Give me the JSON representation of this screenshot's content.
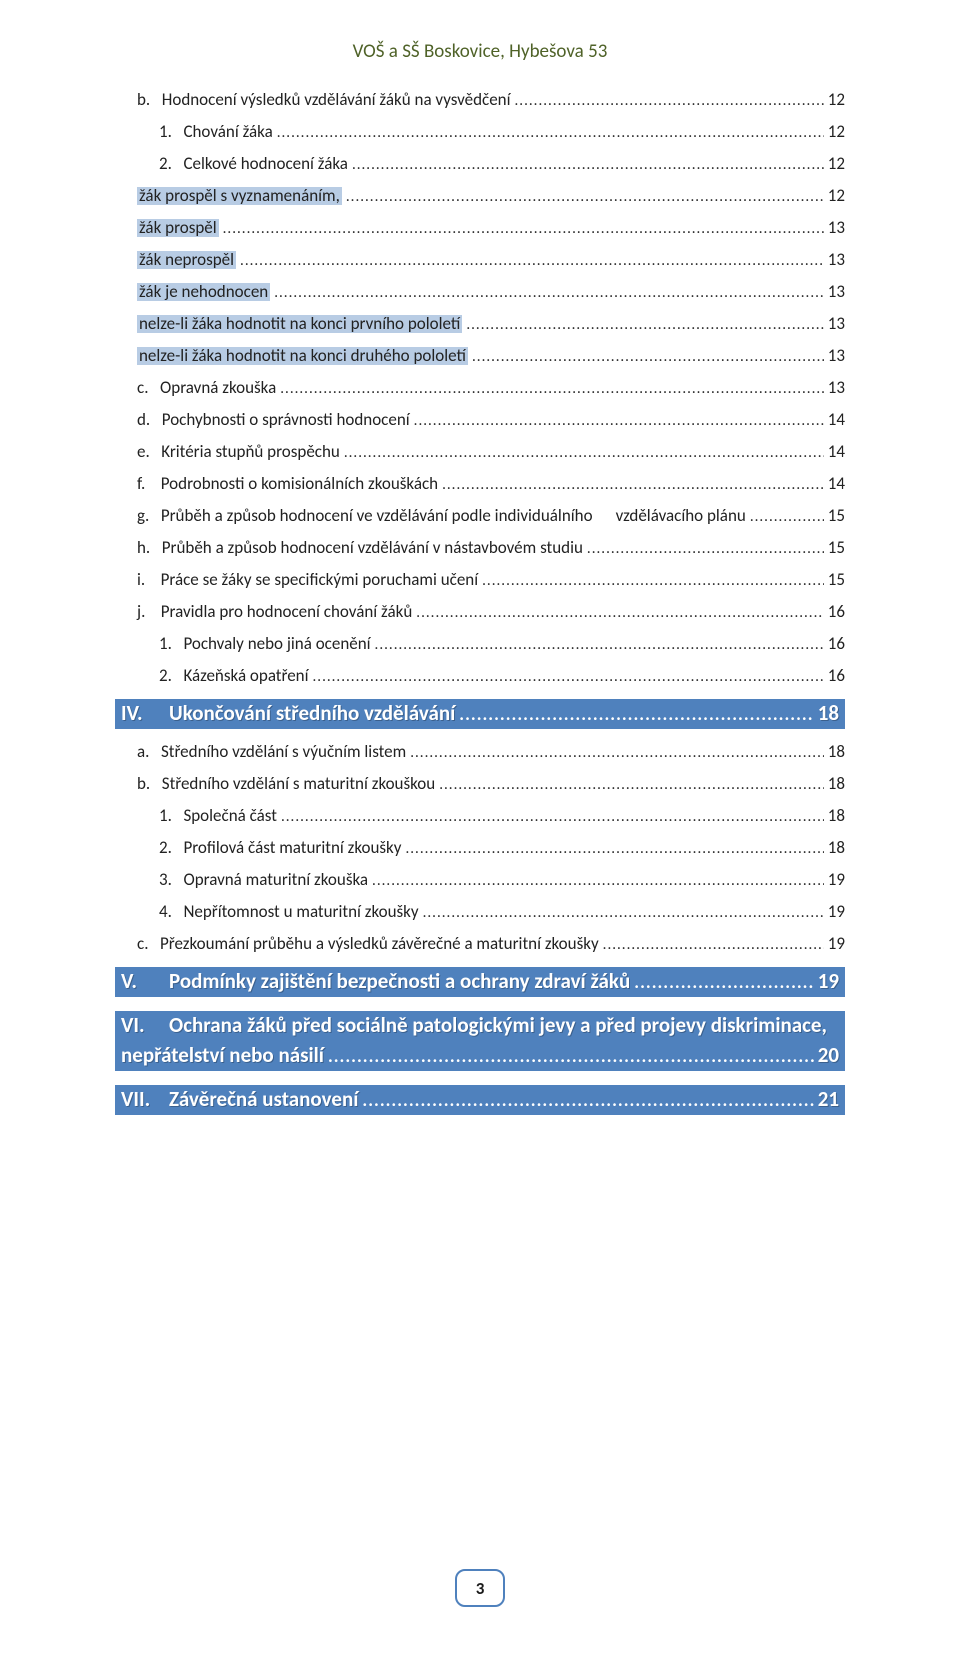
{
  "header": "VOŠ a SŠ Boskovice, Hybešova 53",
  "page_number": "3",
  "toc": [
    {
      "type": "line",
      "indent": 1,
      "prefix": "b.   ",
      "label": "Hodnocení výsledků vzdělávání žáků na vysvědčení",
      "page": "12",
      "hl": false
    },
    {
      "type": "line",
      "indent": 2,
      "prefix": "1.   ",
      "label": "Chování žáka",
      "page": "12",
      "hl": false
    },
    {
      "type": "line",
      "indent": 2,
      "prefix": "2.   ",
      "label": "Celkové hodnocení žáka",
      "page": "12",
      "hl": false
    },
    {
      "type": "line",
      "indent": 1,
      "prefix": "",
      "label": "žák prospěl s vyznamenáním,",
      "page": "12",
      "hl": true
    },
    {
      "type": "line",
      "indent": 1,
      "prefix": "",
      "label": "žák prospěl",
      "page": "13",
      "hl": true
    },
    {
      "type": "line",
      "indent": 1,
      "prefix": "",
      "label": "žák neprospěl",
      "page": "13",
      "hl": true
    },
    {
      "type": "line",
      "indent": 1,
      "prefix": "",
      "label": "žák je nehodnocen",
      "page": "13",
      "hl": true
    },
    {
      "type": "line",
      "indent": 1,
      "prefix": "",
      "label": "nelze-li žáka hodnotit na konci prvního pololetí",
      "page": "13",
      "hl": true
    },
    {
      "type": "line",
      "indent": 1,
      "prefix": "",
      "label": "nelze-li žáka hodnotit na konci druhého pololetí",
      "page": "13",
      "hl": true
    },
    {
      "type": "line",
      "indent": 1,
      "prefix": "c.   ",
      "label": "Opravná zkouška",
      "page": "13",
      "hl": false
    },
    {
      "type": "line",
      "indent": 1,
      "prefix": "d.   ",
      "label": "Pochybnosti o správnosti hodnocení",
      "page": "14",
      "hl": false
    },
    {
      "type": "line",
      "indent": 1,
      "prefix": "e.   ",
      "label": "Kritéria stupňů prospěchu",
      "page": "14",
      "hl": false
    },
    {
      "type": "line",
      "indent": 1,
      "prefix": "f.    ",
      "label": "Podrobnosti o komisionálních zkouškách",
      "page": "14",
      "hl": false
    },
    {
      "type": "line",
      "indent": 1,
      "prefix": "g.   ",
      "label": "Průběh a způsob hodnocení ve vzdělávání podle individuálního      vzdělávacího plánu",
      "page": "15",
      "hl": false
    },
    {
      "type": "line",
      "indent": 1,
      "prefix": "h.   ",
      "label": "Průběh a způsob hodnocení vzdělávání v nástavbovém studiu",
      "page": "15",
      "hl": false
    },
    {
      "type": "line",
      "indent": 1,
      "prefix": "i.    ",
      "label": "Práce se žáky se specifickými poruchami učení",
      "page": "15",
      "hl": false
    },
    {
      "type": "line",
      "indent": 1,
      "prefix": "j.    ",
      "label": "Pravidla pro hodnocení chování žáků",
      "page": "16",
      "hl": false
    },
    {
      "type": "line",
      "indent": 2,
      "prefix": "1.   ",
      "label": "Pochvaly nebo jiná ocenění",
      "page": "16",
      "hl": false
    },
    {
      "type": "line",
      "indent": 2,
      "prefix": "2.   ",
      "label": "Kázeňská opatření",
      "page": "16",
      "hl": false
    },
    {
      "type": "heading",
      "num": "IV.",
      "label": "Ukončování středního vzdělávání",
      "page": "18"
    },
    {
      "type": "line",
      "indent": 1,
      "prefix": "a.   ",
      "label": "Středního vzdělání s výučním listem",
      "page": "18",
      "hl": false
    },
    {
      "type": "line",
      "indent": 1,
      "prefix": "b.   ",
      "label": "Středního vzdělání s maturitní zkouškou",
      "page": "18",
      "hl": false
    },
    {
      "type": "line",
      "indent": 2,
      "prefix": "1.   ",
      "label": "Společná část",
      "page": "18",
      "hl": false
    },
    {
      "type": "line",
      "indent": 2,
      "prefix": "2.   ",
      "label": "Profilová část maturitní zkoušky",
      "page": "18",
      "hl": false
    },
    {
      "type": "line",
      "indent": 2,
      "prefix": "3.   ",
      "label": "Opravná maturitní zkouška",
      "page": "19",
      "hl": false
    },
    {
      "type": "line",
      "indent": 2,
      "prefix": "4.   ",
      "label": "Nepřítomnost u maturitní zkoušky",
      "page": "19",
      "hl": false
    },
    {
      "type": "line",
      "indent": 1,
      "prefix": "c.   ",
      "label": "Přezkoumání průběhu a výsledků závěrečné a maturitní zkoušky",
      "page": "19",
      "hl": false
    },
    {
      "type": "heading",
      "num": "V.",
      "label": "Podmínky zajištění bezpečnosti a ochrany zdraví žáků",
      "page": "19"
    },
    {
      "type": "heading-wrap",
      "num": "VI.",
      "label1": "Ochrana žáků před sociálně patologickými jevy a před projevy diskriminace,",
      "label2": "nepřátelství nebo násilí",
      "page": "20"
    },
    {
      "type": "heading",
      "num": "VII.",
      "label": "Závěrečná ustanovení",
      "page": "21"
    }
  ]
}
